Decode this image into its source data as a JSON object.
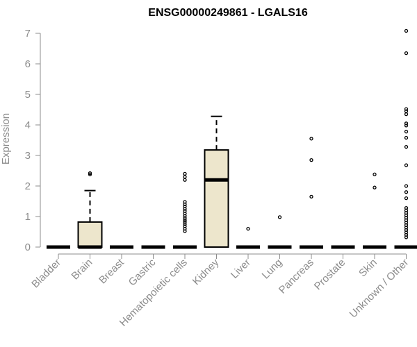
{
  "chart_data": {
    "type": "boxplot",
    "title": "ENSG00000249861 - LGALS16",
    "xlabel": "",
    "ylabel": "Expression",
    "ylim": [
      0,
      7.1
    ],
    "yticks": [
      0,
      1,
      2,
      3,
      4,
      5,
      6,
      7
    ],
    "grid": false,
    "box_fill": "#ede6cc",
    "categories": [
      "Bladder",
      "Brain",
      "Breast",
      "Gastric",
      "Hematopoietic cells",
      "Kidney",
      "Liver",
      "Lung",
      "Pancreas",
      "Prostate",
      "Skin",
      "Unknown / Other"
    ],
    "boxes": [
      {
        "q1": 0,
        "median": 0,
        "q3": 0,
        "whisker_low": 0,
        "whisker_high": 0,
        "outliers": []
      },
      {
        "q1": 0,
        "median": 0,
        "q3": 0.82,
        "whisker_low": 0,
        "whisker_high": 1.85,
        "outliers": [
          2.38,
          2.42
        ]
      },
      {
        "q1": 0,
        "median": 0,
        "q3": 0,
        "whisker_low": 0,
        "whisker_high": 0,
        "outliers": []
      },
      {
        "q1": 0,
        "median": 0,
        "q3": 0,
        "whisker_low": 0,
        "whisker_high": 0,
        "outliers": []
      },
      {
        "q1": 0,
        "median": 0,
        "q3": 0,
        "whisker_low": 0,
        "whisker_high": 0,
        "outliers": [
          0.52,
          0.6,
          0.68,
          0.75,
          0.82,
          0.88,
          0.95,
          1.02,
          1.1,
          1.18,
          1.25,
          1.33,
          1.4,
          1.48,
          2.2,
          2.3,
          2.4
        ]
      },
      {
        "q1": 0,
        "median": 2.2,
        "q3": 3.18,
        "whisker_low": 0,
        "whisker_high": 4.28,
        "outliers": []
      },
      {
        "q1": 0,
        "median": 0,
        "q3": 0,
        "whisker_low": 0,
        "whisker_high": 0,
        "outliers": [
          0.6
        ]
      },
      {
        "q1": 0,
        "median": 0,
        "q3": 0,
        "whisker_low": 0,
        "whisker_high": 0,
        "outliers": [
          0.98
        ]
      },
      {
        "q1": 0,
        "median": 0,
        "q3": 0,
        "whisker_low": 0,
        "whisker_high": 0,
        "outliers": [
          1.65,
          2.85,
          3.55
        ]
      },
      {
        "q1": 0,
        "median": 0,
        "q3": 0,
        "whisker_low": 0,
        "whisker_high": 0,
        "outliers": []
      },
      {
        "q1": 0,
        "median": 0,
        "q3": 0,
        "whisker_low": 0,
        "whisker_high": 0,
        "outliers": [
          1.95,
          2.38
        ]
      },
      {
        "q1": 0,
        "median": 0,
        "q3": 0,
        "whisker_low": 0,
        "whisker_high": 0,
        "outliers": [
          0.32,
          0.4,
          0.48,
          0.56,
          0.64,
          0.72,
          0.8,
          0.88,
          0.96,
          1.04,
          1.12,
          1.2,
          1.28,
          1.6,
          1.8,
          2.0,
          2.68,
          3.28,
          3.58,
          3.78,
          3.98,
          4.05,
          4.35,
          4.45,
          4.52,
          6.35,
          7.08
        ]
      }
    ]
  }
}
